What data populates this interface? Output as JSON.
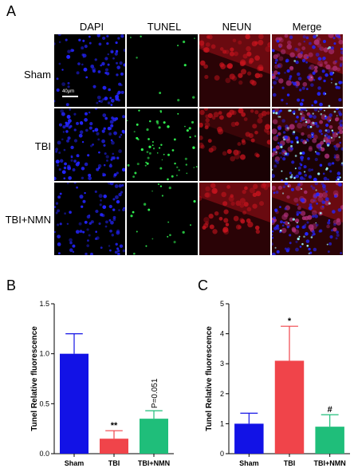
{
  "panels": {
    "A": "A",
    "B": "B",
    "C": "C"
  },
  "micrograph": {
    "columns": [
      "DAPI",
      "TUNEL",
      "NEUN",
      "Merge"
    ],
    "rows": [
      "Sham",
      "TBI",
      "TBI+NMN"
    ],
    "scale_bar": "40μm"
  },
  "chart_data": [
    {
      "type": "bar",
      "ylabel": "Tunel Relative fluorescence",
      "categories": [
        "Sham",
        "TBI",
        "TBI+NMN"
      ],
      "values": [
        1.0,
        0.15,
        0.35
      ],
      "errors": [
        0.2,
        0.08,
        0.08
      ],
      "ylim": [
        0,
        1.5
      ],
      "yticks": [
        "0.0",
        "0.5",
        "1.0",
        "1.5"
      ],
      "annotations": [
        "",
        "**",
        "P=0.051"
      ],
      "colors": [
        "#1212e6",
        "#f0444a",
        "#1fbe7a"
      ]
    },
    {
      "type": "bar",
      "ylabel": "Tunel Relative fluorescence",
      "categories": [
        "Sham",
        "TBI",
        "TBI+NMN"
      ],
      "values": [
        1.0,
        3.1,
        0.9
      ],
      "errors": [
        0.35,
        1.15,
        0.4
      ],
      "ylim": [
        0,
        5
      ],
      "yticks": [
        "0",
        "1",
        "2",
        "3",
        "4",
        "5"
      ],
      "annotations": [
        "",
        "*",
        "#"
      ],
      "colors": [
        "#1212e6",
        "#f0444a",
        "#1fbe7a"
      ]
    }
  ]
}
